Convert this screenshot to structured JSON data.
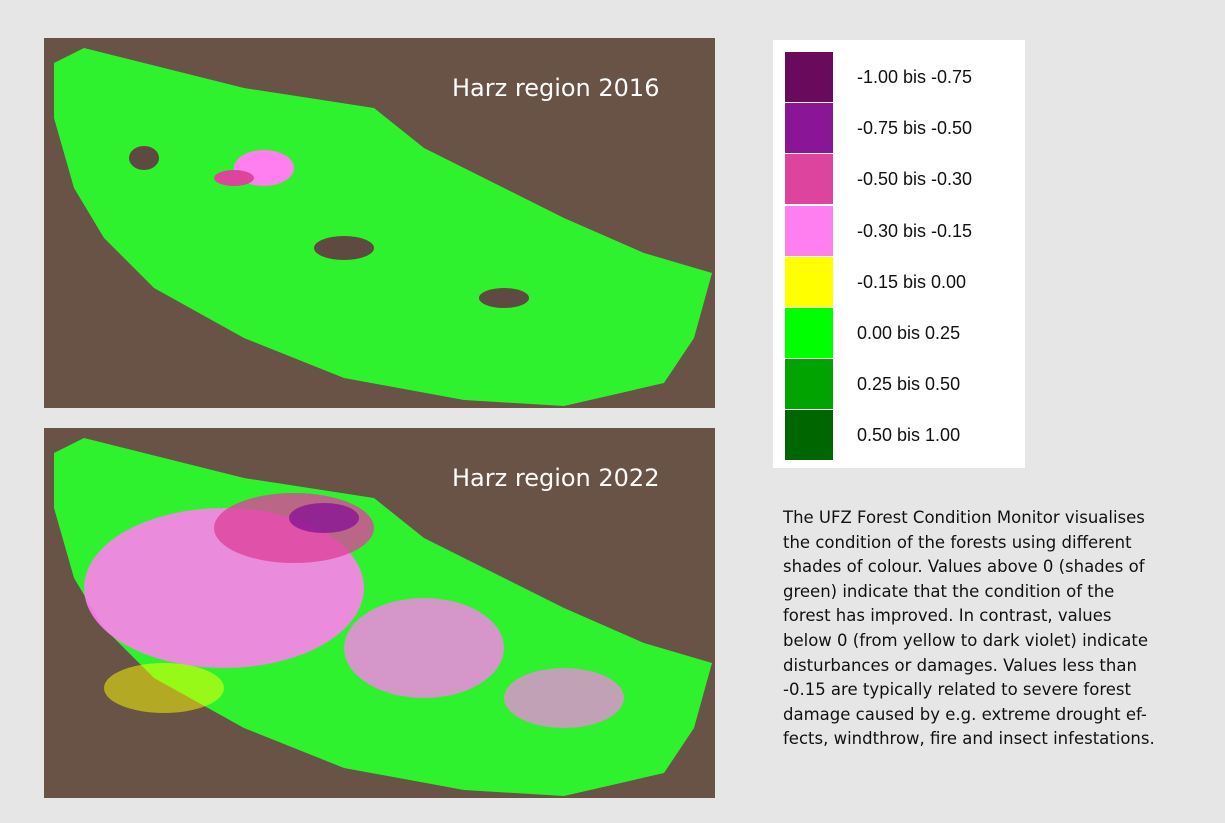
{
  "maps": [
    {
      "label": "Harz region 2016"
    },
    {
      "label": "Harz region 2022"
    }
  ],
  "legend": [
    {
      "color": "#6a0a5c",
      "label": "-1.00 bis -0.75"
    },
    {
      "color": "#8a1596",
      "label": "-0.75 bis -0.50"
    },
    {
      "color": "#dd449e",
      "label": "-0.50 bis -0.30"
    },
    {
      "color": "#ff7ff0",
      "label": "-0.30 bis -0.15"
    },
    {
      "color": "#ffff00",
      "label": "-0.15 bis 0.00"
    },
    {
      "color": "#00ff00",
      "label": "0.00 bis 0.25"
    },
    {
      "color": "#00a300",
      "label": "0.25 bis 0.50"
    },
    {
      "color": "#006600",
      "label": "0.50 bis 1.00"
    }
  ],
  "description": [
    "The UFZ Forest Condition Monitor visualises",
    "the condition of the forests using different",
    "shades of colour. Values above 0 (shades of",
    "green) indicate that the condition of the",
    "forest has improved. In contrast, values",
    "below 0 (from yellow to dark violet) indicate",
    "disturbances or damages. Values less than",
    "-0.15 are typically related to severe forest",
    "damage caused by e.g. extreme drought ef-",
    "fects, windthrow, fire and insect infestations."
  ]
}
